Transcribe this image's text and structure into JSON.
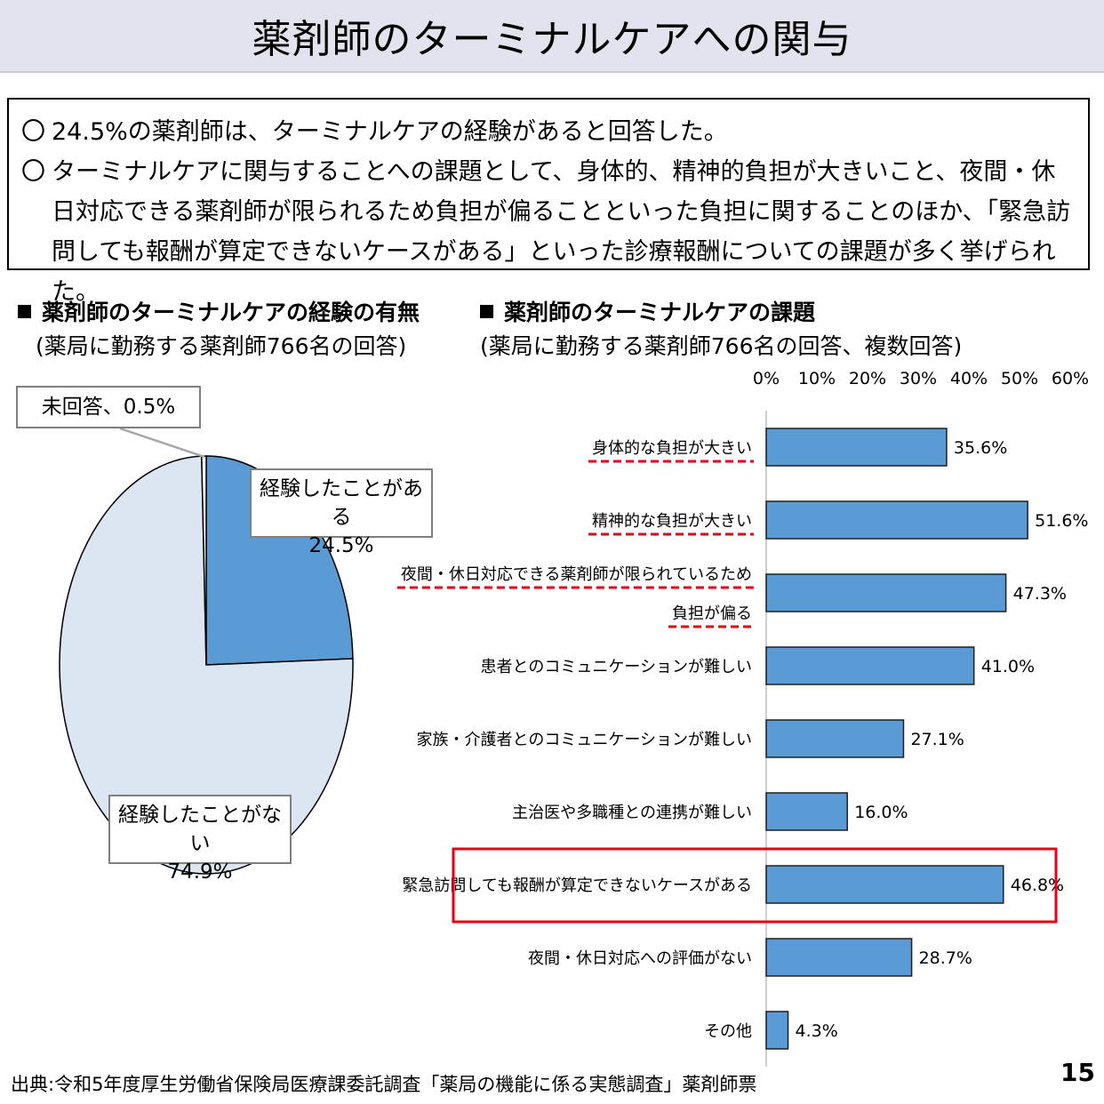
{
  "page": {
    "title": "薬剤師のターミナルケアへの関与",
    "summary": [
      {
        "bullet": "〇",
        "text": "24.5%の薬剤師は、ターミナルケアの経験があると回答した。"
      },
      {
        "bullet": "〇",
        "text": "ターミナルケアに関与することへの課題として、身体的、精神的負担が大きいこと、夜間・休日対応できる薬剤師が限られるため負担が偏ることといった負担に関することのほか、「緊急訪問しても報酬が算定できないケースがある」といった診療報酬についての課題が多く挙げられた。"
      }
    ],
    "source": "出典:令和5年度厚生労働省保険局医療課委託調査「薬局の機能に係る実態調査」薬剤師票",
    "page_number": "15"
  },
  "colors": {
    "bar": "#5b9bd5",
    "bar_stroke": "#1f1f1f",
    "pie_experienced": "#5b9bd5",
    "pie_not_experienced": "#dce6f2",
    "pie_no_answer": "#ffffff",
    "highlight_box": "#e60012",
    "underline": "#e60012"
  },
  "chart_data": [
    {
      "type": "pie",
      "title": "薬剤師のターミナルケアの経験の有無",
      "subtitle": "(薬局に勤務する薬剤師766名の回答)",
      "slices": [
        {
          "label": "経験したことがある",
          "value": 24.5,
          "value_label": "24.5%"
        },
        {
          "label": "経験したことがない",
          "value": 74.9,
          "value_label": "74.9%"
        },
        {
          "label": "未回答",
          "value": 0.5,
          "value_label": "0.5%",
          "text": "未回答、0.5%"
        }
      ]
    },
    {
      "type": "bar",
      "orientation": "horizontal",
      "title": "薬剤師のターミナルケアの課題",
      "subtitle": "(薬局に勤務する薬剤師766名の回答、複数回答)",
      "xlim": [
        0,
        60
      ],
      "ticks": [
        "0%",
        "10%",
        "20%",
        "30%",
        "40%",
        "50%",
        "60%"
      ],
      "categories": [
        {
          "label_lines": [
            "身体的な負担が大きい"
          ],
          "value": 35.6,
          "value_label": "35.6%",
          "underline": true,
          "highlight": false
        },
        {
          "label_lines": [
            "精神的な負担が大きい"
          ],
          "value": 51.6,
          "value_label": "51.6%",
          "underline": true,
          "highlight": false
        },
        {
          "label_lines": [
            "夜間・休日対応できる薬剤師が限られているため",
            "負担が偏る"
          ],
          "value": 47.3,
          "value_label": "47.3%",
          "underline": true,
          "highlight": false
        },
        {
          "label_lines": [
            "患者とのコミュニケーションが難しい"
          ],
          "value": 41.0,
          "value_label": "41.0%",
          "underline": false,
          "highlight": false
        },
        {
          "label_lines": [
            "家族・介護者とのコミュニケーションが難しい"
          ],
          "value": 27.1,
          "value_label": "27.1%",
          "underline": false,
          "highlight": false
        },
        {
          "label_lines": [
            "主治医や多職種との連携が難しい"
          ],
          "value": 16.0,
          "value_label": "16.0%",
          "underline": false,
          "highlight": false
        },
        {
          "label_lines": [
            "緊急訪問しても報酬が算定できないケースがある"
          ],
          "value": 46.8,
          "value_label": "46.8%",
          "underline": false,
          "highlight": true
        },
        {
          "label_lines": [
            "夜間・休日対応への評価がない"
          ],
          "value": 28.7,
          "value_label": "28.7%",
          "underline": false,
          "highlight": false
        },
        {
          "label_lines": [
            "その他"
          ],
          "value": 4.3,
          "value_label": "4.3%",
          "underline": false,
          "highlight": false
        }
      ]
    }
  ]
}
